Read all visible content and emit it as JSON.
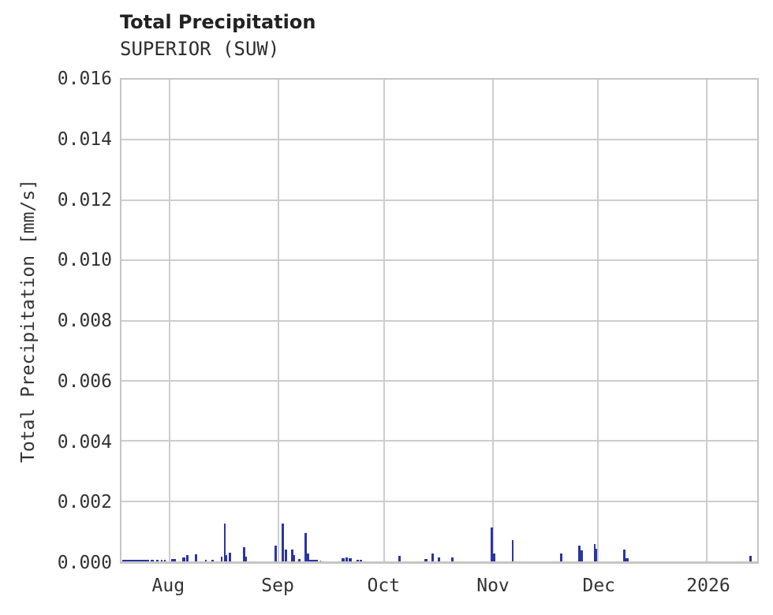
{
  "header": {
    "title": "Total Precipitation",
    "subtitle": "SUPERIOR (SUW)"
  },
  "chart_data": {
    "type": "bar",
    "title": "Total Precipitation",
    "subtitle": "SUPERIOR (SUW)",
    "xlabel": "",
    "ylabel": "Total Precipitation [mm/s]",
    "ylim": [
      0,
      0.016
    ],
    "grid": true,
    "legend": "none",
    "bar_color": "#2b35a2",
    "gridline_color": "#cdcdcd",
    "x_axis_unit": "days from left edge of axis (mid-July 2025 to mid-January 2026)",
    "x_range_days": [
      0,
      181
    ],
    "xticks": [
      {
        "label": "Aug",
        "day": 13.7
      },
      {
        "label": "Sep",
        "day": 44.7
      },
      {
        "label": "Oct",
        "day": 74.7
      },
      {
        "label": "Nov",
        "day": 105.7
      },
      {
        "label": "Dec",
        "day": 135.7
      },
      {
        "label": "2026",
        "day": 166.7
      }
    ],
    "yticks": [
      {
        "label": "0.000",
        "value": 0.0
      },
      {
        "label": "0.002",
        "value": 0.002
      },
      {
        "label": "0.004",
        "value": 0.004
      },
      {
        "label": "0.006",
        "value": 0.006
      },
      {
        "label": "0.008",
        "value": 0.008
      },
      {
        "label": "0.010",
        "value": 0.01
      },
      {
        "label": "0.012",
        "value": 0.012
      },
      {
        "label": "0.014",
        "value": 0.014
      },
      {
        "label": "0.016",
        "value": 0.016
      }
    ],
    "bars_format": "[start_day, end_day, value_mm_per_s]",
    "bars": [
      [
        0.2,
        7.8,
        5e-05
      ],
      [
        8.3,
        9.2,
        4e-05
      ],
      [
        9.8,
        10.5,
        4e-05
      ],
      [
        11.2,
        11.6,
        4e-05
      ],
      [
        12.1,
        12.5,
        4e-05
      ],
      [
        14.1,
        15.4,
        8e-05
      ],
      [
        17.4,
        18.1,
        0.00013
      ],
      [
        18.5,
        19.2,
        0.0002
      ],
      [
        20.8,
        21.5,
        0.00023
      ],
      [
        23.7,
        24.2,
        5e-05
      ],
      [
        25.7,
        26.2,
        5e-05
      ],
      [
        28.2,
        28.8,
        0.00016
      ],
      [
        29.1,
        29.7,
        0.00125
      ],
      [
        29.7,
        30.2,
        0.0002
      ],
      [
        30.6,
        31.3,
        0.00029
      ],
      [
        34.6,
        35.3,
        0.00047
      ],
      [
        35.3,
        35.8,
        0.00016
      ],
      [
        43.6,
        44.2,
        0.00052
      ],
      [
        45.6,
        46.3,
        0.00125
      ],
      [
        46.5,
        47.2,
        0.00039
      ],
      [
        48.3,
        48.9,
        0.00039
      ],
      [
        48.9,
        49.4,
        0.0002
      ],
      [
        50.3,
        50.9,
        8e-05
      ],
      [
        52.1,
        52.7,
        0.00094
      ],
      [
        52.7,
        53.4,
        0.00026
      ],
      [
        53.4,
        55.9,
        5e-05
      ],
      [
        56.5,
        56.9,
        3e-05
      ],
      [
        62.6,
        63.5,
        0.0001
      ],
      [
        63.7,
        64.4,
        0.00013
      ],
      [
        64.6,
        65.5,
        0.0001
      ],
      [
        67.0,
        67.7,
        5e-05
      ],
      [
        67.9,
        68.4,
        5e-05
      ],
      [
        78.9,
        79.6,
        0.00018
      ],
      [
        86.3,
        87.2,
        8e-05
      ],
      [
        88.3,
        88.9,
        0.00026
      ],
      [
        90.1,
        90.7,
        0.00013
      ],
      [
        93.9,
        94.5,
        0.00013
      ],
      [
        105.0,
        105.7,
        0.00112
      ],
      [
        105.7,
        106.4,
        0.00026
      ],
      [
        111.1,
        111.7,
        0.0007
      ],
      [
        124.9,
        125.6,
        0.00026
      ],
      [
        130.1,
        130.7,
        0.00052
      ],
      [
        130.7,
        131.4,
        0.00037
      ],
      [
        134.5,
        135.0,
        0.00057
      ],
      [
        135.0,
        135.4,
        0.00042
      ],
      [
        142.8,
        143.5,
        0.00039
      ],
      [
        143.5,
        144.4,
        0.0001
      ],
      [
        178.8,
        179.4,
        0.00018
      ]
    ]
  }
}
